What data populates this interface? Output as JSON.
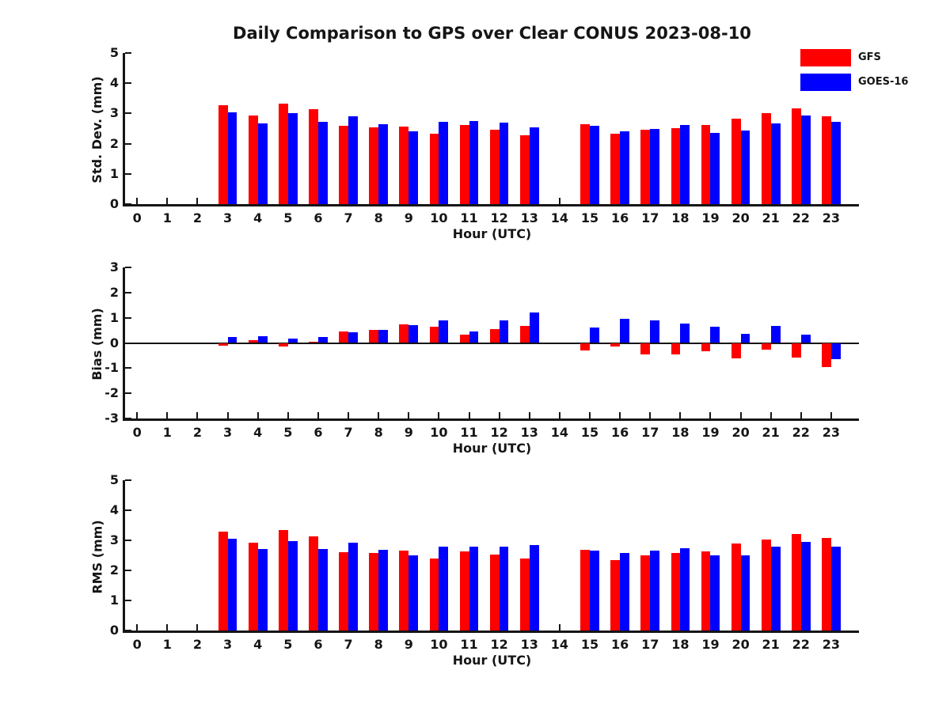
{
  "title": "Daily Comparison to GPS over Clear CONUS 2023-08-10",
  "colors": {
    "gfs_red": "#ff0000",
    "goes16_blue": "#0000ff"
  },
  "legend": {
    "position": "top-right",
    "items": [
      {
        "label": "GFS",
        "color": "#ff0000"
      },
      {
        "label": "GOES-16",
        "color": "#0000ff"
      }
    ]
  },
  "chart_data": [
    {
      "type": "bar",
      "ylabel": "Std. Dev. (mm)",
      "xlabel": "Hour (UTC)",
      "ylim": [
        0,
        5
      ],
      "yticks": [
        0,
        1,
        2,
        3,
        4,
        5
      ],
      "grid": false,
      "categories": [
        0,
        1,
        2,
        3,
        4,
        5,
        6,
        7,
        8,
        9,
        10,
        11,
        12,
        13,
        14,
        15,
        16,
        17,
        18,
        19,
        20,
        21,
        22,
        23
      ],
      "series": [
        {
          "name": "GFS",
          "color": "#ff0000",
          "values": [
            null,
            null,
            null,
            3.28,
            2.92,
            3.33,
            3.14,
            2.6,
            2.54,
            2.57,
            2.32,
            2.61,
            2.45,
            2.28,
            null,
            2.65,
            2.33,
            2.45,
            2.52,
            2.61,
            2.82,
            3.0,
            3.16,
            2.9
          ]
        },
        {
          "name": "GOES-16",
          "color": "#0000ff",
          "values": [
            null,
            null,
            null,
            3.03,
            2.68,
            3.0,
            2.73,
            2.9,
            2.65,
            2.42,
            2.71,
            2.74,
            2.7,
            2.53,
            null,
            2.59,
            2.41,
            2.49,
            2.62,
            2.36,
            2.43,
            2.68,
            2.92,
            2.71
          ]
        }
      ]
    },
    {
      "type": "bar",
      "ylabel": "Bias (mm)",
      "xlabel": "Hour (UTC)",
      "ylim": [
        -3,
        3
      ],
      "yticks": [
        3,
        2,
        1,
        0,
        -1,
        -2,
        -3
      ],
      "zero_line": true,
      "grid": false,
      "categories": [
        0,
        1,
        2,
        3,
        4,
        5,
        6,
        7,
        8,
        9,
        10,
        11,
        12,
        13,
        14,
        15,
        16,
        17,
        18,
        19,
        20,
        21,
        22,
        23
      ],
      "series": [
        {
          "name": "GFS",
          "color": "#ff0000",
          "values": [
            null,
            null,
            null,
            -0.12,
            0.12,
            -0.15,
            0.04,
            0.45,
            0.52,
            0.73,
            0.64,
            0.33,
            0.55,
            0.68,
            null,
            -0.3,
            -0.13,
            -0.47,
            -0.45,
            -0.34,
            -0.62,
            -0.27,
            -0.58,
            -0.95
          ]
        },
        {
          "name": "GOES-16",
          "color": "#0000ff",
          "values": [
            null,
            null,
            null,
            0.22,
            0.27,
            0.18,
            0.22,
            0.43,
            0.51,
            0.7,
            0.9,
            0.46,
            0.9,
            1.22,
            null,
            0.6,
            0.95,
            0.9,
            0.78,
            0.64,
            0.37,
            0.68,
            0.32,
            -0.64
          ]
        }
      ]
    },
    {
      "type": "bar",
      "ylabel": "RMS (mm)",
      "xlabel": "Hour (UTC)",
      "ylim": [
        0,
        5
      ],
      "yticks": [
        0,
        1,
        2,
        3,
        4,
        5
      ],
      "grid": false,
      "categories": [
        0,
        1,
        2,
        3,
        4,
        5,
        6,
        7,
        8,
        9,
        10,
        11,
        12,
        13,
        14,
        15,
        16,
        17,
        18,
        19,
        20,
        21,
        22,
        23
      ],
      "series": [
        {
          "name": "GFS",
          "color": "#ff0000",
          "values": [
            null,
            null,
            null,
            3.28,
            2.92,
            3.34,
            3.14,
            2.61,
            2.58,
            2.67,
            2.4,
            2.63,
            2.52,
            2.4,
            null,
            2.69,
            2.35,
            2.49,
            2.57,
            2.64,
            2.89,
            3.02,
            3.22,
            3.07
          ]
        },
        {
          "name": "GOES-16",
          "color": "#0000ff",
          "values": [
            null,
            null,
            null,
            3.05,
            2.7,
            2.98,
            2.72,
            2.93,
            2.68,
            2.5,
            2.8,
            2.78,
            2.8,
            2.84,
            null,
            2.66,
            2.59,
            2.67,
            2.75,
            2.5,
            2.5,
            2.79,
            2.94,
            2.8
          ]
        }
      ]
    }
  ]
}
